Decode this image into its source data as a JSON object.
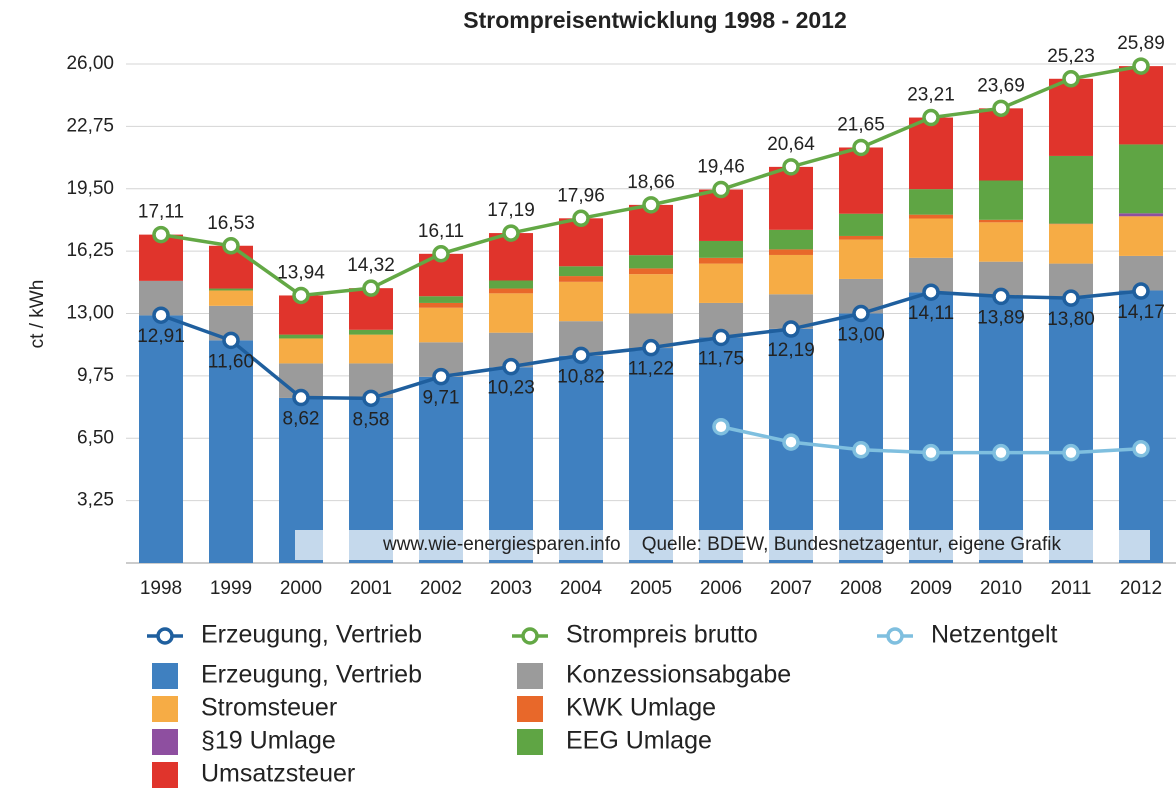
{
  "chart_data": {
    "type": "bar",
    "stacked": true,
    "title": "Strompreisentwicklung 1998 - 2012",
    "ylabel": "ct / kWh",
    "annotation": "www.wie-energiesparen.info    Quelle: BDEW, Bundesnetzagentur, eigene Grafik",
    "categories": [
      "1998",
      "1999",
      "2000",
      "2001",
      "2002",
      "2003",
      "2004",
      "2005",
      "2006",
      "2007",
      "2008",
      "2009",
      "2010",
      "2011",
      "2012"
    ],
    "ylim": [
      0,
      26
    ],
    "yticks": [
      {
        "value": 3.25,
        "label": "3,25"
      },
      {
        "value": 6.5,
        "label": "6,50"
      },
      {
        "value": 9.75,
        "label": "9,75"
      },
      {
        "value": 13,
        "label": "13,00"
      },
      {
        "value": 16.25,
        "label": "16,25"
      },
      {
        "value": 19.5,
        "label": "19,50"
      },
      {
        "value": 22.75,
        "label": "22,75"
      },
      {
        "value": 26,
        "label": "26,00"
      }
    ],
    "grid": true,
    "series": [
      {
        "name": "Erzeugung, Vertrieb",
        "type": "line",
        "color": "#1f5f9e",
        "label_side": "below",
        "values": [
          12.91,
          11.6,
          8.62,
          8.58,
          9.71,
          10.23,
          10.82,
          11.22,
          11.75,
          12.19,
          13.0,
          14.11,
          13.89,
          13.8,
          14.17
        ],
        "value_labels": [
          "12,91",
          "11,60",
          "8,62",
          "8,58",
          "9,71",
          "10,23",
          "10,82",
          "11,22",
          "11,75",
          "12,19",
          "13,00",
          "14,11",
          "13,89",
          "13,80",
          "14,17"
        ]
      },
      {
        "name": "Strompreis brutto",
        "type": "line",
        "color": "#63a845",
        "label_side": "above",
        "values": [
          17.11,
          16.53,
          13.94,
          14.32,
          16.11,
          17.19,
          17.96,
          18.66,
          19.46,
          20.64,
          21.65,
          23.21,
          23.69,
          25.23,
          25.89
        ],
        "value_labels": [
          "17,11",
          "16,53",
          "13,94",
          "14,32",
          "16,11",
          "17,19",
          "17,96",
          "18,66",
          "19,46",
          "20,64",
          "21,65",
          "23,21",
          "23,69",
          "25,23",
          "25,89"
        ]
      },
      {
        "name": "Netzentgelt",
        "type": "line",
        "color": "#7fbfdf",
        "values": [
          null,
          null,
          null,
          null,
          null,
          null,
          null,
          null,
          7.1,
          6.3,
          5.9,
          5.75,
          5.75,
          5.75,
          5.95
        ]
      },
      {
        "name": "Erzeugung, Vertrieb",
        "type": "bar",
        "color": "#3f80c0",
        "values": [
          12.9,
          11.6,
          8.6,
          8.6,
          9.7,
          10.2,
          10.8,
          11.2,
          11.75,
          12.2,
          13.0,
          14.1,
          13.9,
          13.8,
          14.2
        ]
      },
      {
        "name": "Konzessionsabgabe",
        "type": "bar",
        "color": "#9b9b9b",
        "values": [
          1.8,
          1.8,
          1.8,
          1.8,
          1.8,
          1.8,
          1.8,
          1.8,
          1.8,
          1.8,
          1.8,
          1.8,
          1.8,
          1.8,
          1.8
        ]
      },
      {
        "name": "Stromsteuer",
        "type": "bar",
        "color": "#f6ac45",
        "values": [
          0,
          0.8,
          1.3,
          1.5,
          1.8,
          2.05,
          2.05,
          2.05,
          2.05,
          2.05,
          2.05,
          2.05,
          2.05,
          2.05,
          2.05
        ]
      },
      {
        "name": "KWK Umlage",
        "type": "bar",
        "color": "#e8682a",
        "values": [
          0,
          0,
          0,
          0,
          0.25,
          0.25,
          0.3,
          0.3,
          0.3,
          0.29,
          0.19,
          0.2,
          0.13,
          0.03,
          0.02
        ]
      },
      {
        "name": "§19 Umlage",
        "type": "bar",
        "color": "#8e4fa0",
        "values": [
          0,
          0,
          0,
          0,
          0,
          0,
          0,
          0,
          0,
          0,
          0,
          0,
          0,
          0,
          0.15
        ]
      },
      {
        "name": "EEG Umlage",
        "type": "bar",
        "color": "#5fa544",
        "values": [
          0,
          0.1,
          0.2,
          0.25,
          0.35,
          0.42,
          0.51,
          0.69,
          0.88,
          1.02,
          1.16,
          1.33,
          2.05,
          3.53,
          3.59
        ]
      },
      {
        "name": "Umsatzsteuer",
        "type": "bar",
        "color": "#e0342c",
        "values": [
          2.41,
          2.23,
          2.04,
          2.17,
          2.21,
          2.47,
          2.5,
          2.62,
          2.68,
          3.28,
          3.45,
          3.73,
          3.76,
          4.02,
          4.08
        ]
      }
    ]
  }
}
